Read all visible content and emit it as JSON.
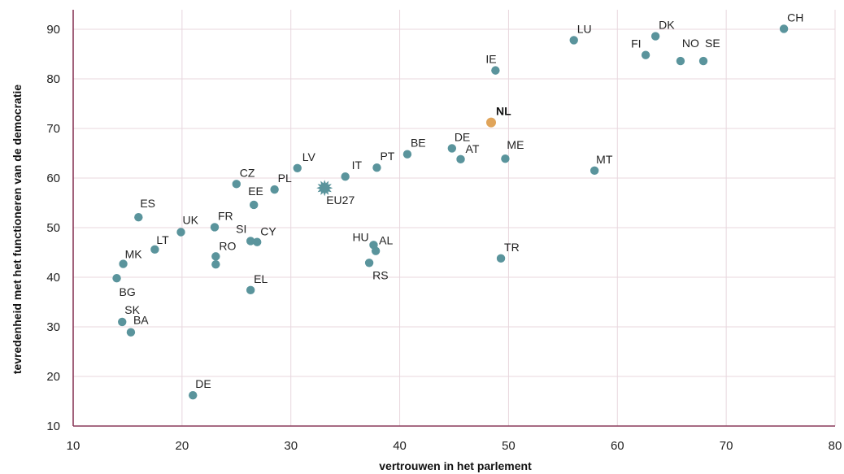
{
  "colors": {
    "point": "#5a949c",
    "highlight": "#e0a45a",
    "grid": "#e8d7de",
    "axis": "#8a3a5a"
  },
  "chart_data": {
    "type": "scatter",
    "xlabel": "vertrouwen in het parlement",
    "ylabel": "tevredenheid met het functioneren van de democratie",
    "xlim": [
      10,
      80
    ],
    "ylim": [
      10,
      90
    ],
    "xticks": [
      10,
      20,
      30,
      40,
      50,
      60,
      70,
      80
    ],
    "yticks": [
      10,
      20,
      30,
      40,
      50,
      60,
      70,
      80,
      90
    ],
    "grid": true,
    "points": [
      {
        "label": "CH",
        "x": 75.3,
        "y": 90.1
      },
      {
        "label": "DK",
        "x": 63.5,
        "y": 88.6
      },
      {
        "label": "LU",
        "x": 56.0,
        "y": 87.8
      },
      {
        "label": "FI",
        "x": 62.6,
        "y": 84.8
      },
      {
        "label": "NO",
        "x": 65.8,
        "y": 83.6
      },
      {
        "label": "SE",
        "x": 67.9,
        "y": 83.6
      },
      {
        "label": "IE",
        "x": 48.8,
        "y": 81.7
      },
      {
        "label": "NL",
        "x": 48.4,
        "y": 71.2,
        "highlight": true
      },
      {
        "label": "BE",
        "x": 40.7,
        "y": 64.8
      },
      {
        "label": "DE",
        "x": 44.8,
        "y": 66.0
      },
      {
        "label": "AT",
        "x": 45.6,
        "y": 63.8
      },
      {
        "label": "ME",
        "x": 49.7,
        "y": 63.9
      },
      {
        "label": "PT",
        "x": 37.9,
        "y": 62.1
      },
      {
        "label": "MT",
        "x": 57.9,
        "y": 61.5
      },
      {
        "label": "LV",
        "x": 30.6,
        "y": 62.0
      },
      {
        "label": "IT",
        "x": 35.0,
        "y": 60.3
      },
      {
        "label": "CZ",
        "x": 25.0,
        "y": 58.8
      },
      {
        "label": "PL",
        "x": 28.5,
        "y": 57.7
      },
      {
        "label": "EU27",
        "x": 33.1,
        "y": 58.0,
        "star": true
      },
      {
        "label": "EE",
        "x": 26.6,
        "y": 54.6
      },
      {
        "label": "ES",
        "x": 16.0,
        "y": 52.1
      },
      {
        "label": "FR",
        "x": 23.0,
        "y": 50.1
      },
      {
        "label": "UK",
        "x": 19.9,
        "y": 49.1
      },
      {
        "label": "SI",
        "x": 26.3,
        "y": 47.3
      },
      {
        "label": "CY",
        "x": 26.9,
        "y": 47.1
      },
      {
        "label": "LT",
        "x": 17.5,
        "y": 45.6
      },
      {
        "label": "HU",
        "x": 37.6,
        "y": 46.5
      },
      {
        "label": "AL",
        "x": 37.8,
        "y": 45.3
      },
      {
        "label": "RO",
        "x": 23.1,
        "y": 44.2
      },
      {
        "label": "RO",
        "x": 23.1,
        "y": 42.6,
        "unlabeled": true
      },
      {
        "label": "TR",
        "x": 49.3,
        "y": 43.8
      },
      {
        "label": "RS",
        "x": 37.2,
        "y": 42.9
      },
      {
        "label": "MK",
        "x": 14.6,
        "y": 42.7
      },
      {
        "label": "BG",
        "x": 14.0,
        "y": 39.8
      },
      {
        "label": "EL",
        "x": 26.3,
        "y": 37.4
      },
      {
        "label": "SK",
        "x": 14.5,
        "y": 31.0
      },
      {
        "label": "BA",
        "x": 15.3,
        "y": 28.9
      },
      {
        "label": "DE",
        "x": 21.0,
        "y": 16.2
      }
    ]
  }
}
